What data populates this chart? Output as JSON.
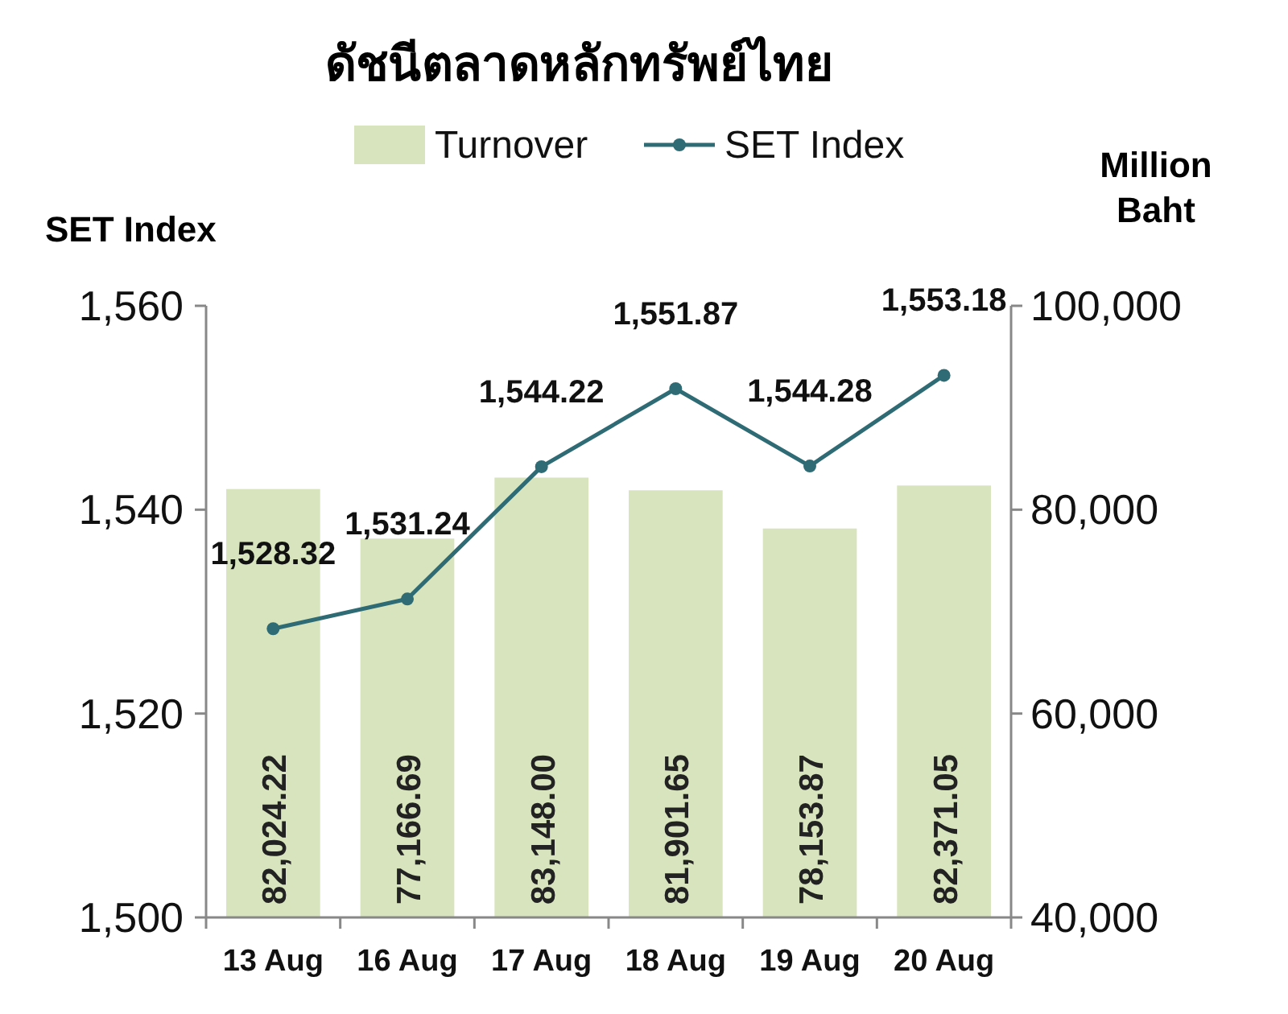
{
  "chart_data": {
    "type": "bar",
    "title": "ดัชนีตลาดหลักทรัพย์ไทย",
    "ylabel": "SET Index",
    "y2label": "Million Baht",
    "categories": [
      "13 Aug",
      "16 Aug",
      "17 Aug",
      "18 Aug",
      "19 Aug",
      "20 Aug"
    ],
    "series": [
      {
        "name": "Turnover",
        "axis": "y2",
        "color": "#d7e4bd",
        "values": [
          82024.22,
          77166.69,
          83148.0,
          81901.65,
          78153.87,
          82371.05
        ],
        "value_labels": [
          "82,024.22",
          "77,166.69",
          "83,148.00",
          "81,901.65",
          "78,153.87",
          "82,371.05"
        ]
      },
      {
        "name": "SET Index",
        "type": "line",
        "color": "#2e6b74",
        "values": [
          1528.32,
          1531.24,
          1544.22,
          1551.87,
          1544.28,
          1553.18
        ],
        "value_labels": [
          "1,528.32",
          "1,531.24",
          "1,544.22",
          "1,551.87",
          "1,544.28",
          "1,553.18"
        ]
      }
    ],
    "ylim": [
      1500,
      1560
    ],
    "yticks": [
      {
        "value": 1500,
        "label": "1,500"
      },
      {
        "value": 1520,
        "label": "1,520"
      },
      {
        "value": 1540,
        "label": "1,540"
      },
      {
        "value": 1560,
        "label": "1,560"
      }
    ],
    "y2lim": [
      40000,
      100000
    ],
    "y2ticks": [
      {
        "value": 40000,
        "label": "40,000"
      },
      {
        "value": 60000,
        "label": "60,000"
      },
      {
        "value": 80000,
        "label": "80,000"
      },
      {
        "value": 100000,
        "label": "100,000"
      }
    ],
    "marker": "circle",
    "legend": "top",
    "grid": false
  }
}
